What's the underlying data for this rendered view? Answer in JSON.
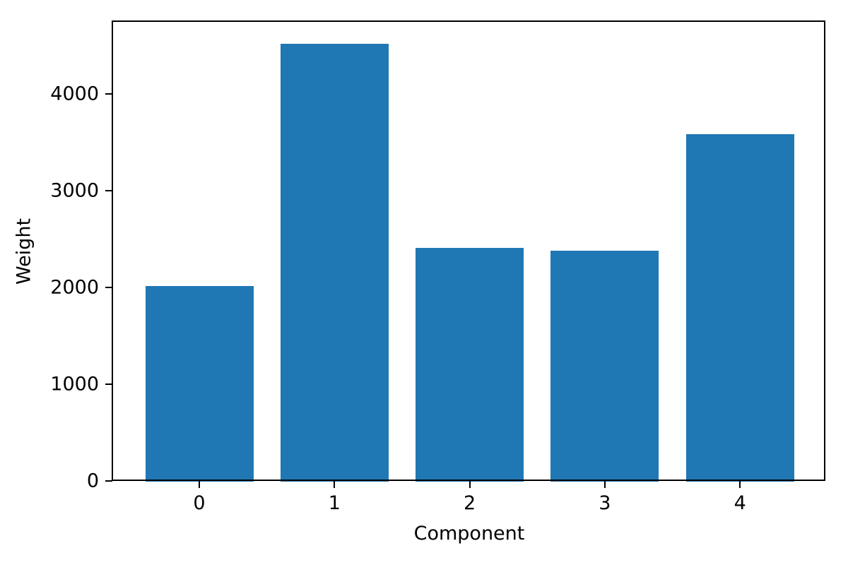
{
  "chart_data": {
    "type": "bar",
    "title": "",
    "xlabel": "Component",
    "ylabel": "Weight",
    "categories": [
      "0",
      "1",
      "2",
      "3",
      "4"
    ],
    "values": [
      2020,
      4530,
      2420,
      2390,
      3595
    ],
    "ylim": [
      0,
      4755
    ],
    "yticks": [
      0,
      1000,
      2000,
      3000,
      4000
    ],
    "ytick_labels": [
      "0",
      "1000",
      "2000",
      "3000",
      "4000"
    ],
    "grid": false,
    "legend": null,
    "bar_color": "#1f77b4",
    "axis_color": "#000000",
    "background_color": "#ffffff"
  }
}
